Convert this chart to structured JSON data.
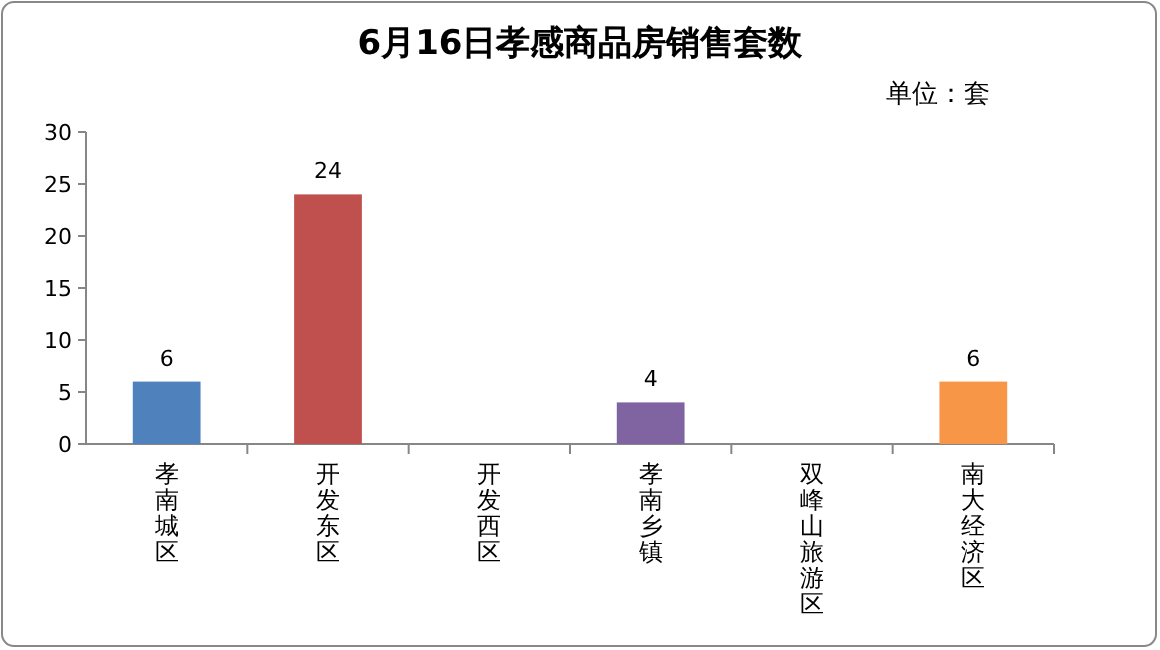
{
  "chart_data": {
    "type": "bar",
    "title": "6月16日孝感商品房销售套数",
    "annotations": [
      "单位：套"
    ],
    "categories": [
      "孝南城区",
      "开发东区",
      "开发西区",
      "孝南乡镇",
      "双峰山旅游区",
      "南大经济区"
    ],
    "values": [
      6,
      24,
      0,
      4,
      0,
      6
    ],
    "value_labels": [
      "6",
      "24",
      null,
      "4",
      null,
      "6"
    ],
    "colors": [
      "#4f81bd",
      "#c0504d",
      "#9bbb59",
      "#8064a2",
      "#4bacc6",
      "#f79646"
    ],
    "ylim": [
      0,
      30
    ],
    "yticks": [
      0,
      5,
      10,
      15,
      20,
      25,
      30
    ],
    "grid": false
  }
}
